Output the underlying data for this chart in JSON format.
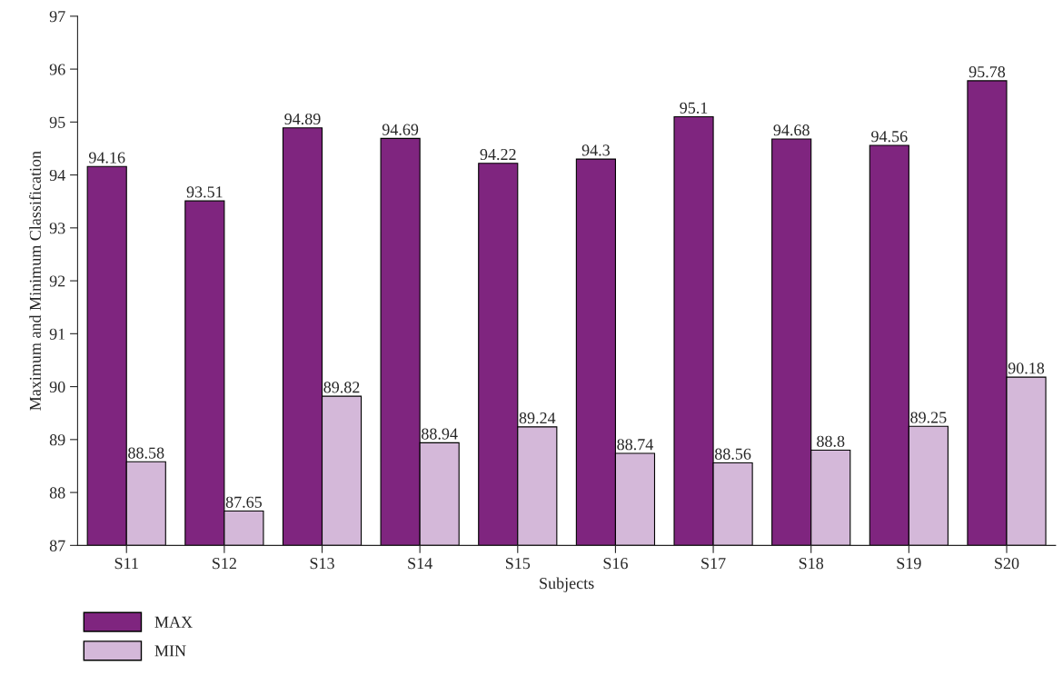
{
  "chart_data": {
    "type": "bar",
    "xlabel": "Subjects",
    "ylabel": "Maximum and Minimum Classification",
    "categories": [
      "S11",
      "S12",
      "S13",
      "S14",
      "S15",
      "S16",
      "S17",
      "S18",
      "S19",
      "S20"
    ],
    "series": [
      {
        "name": "MAX",
        "color": "#7f257f",
        "values": [
          94.16,
          93.51,
          94.89,
          94.69,
          94.22,
          94.3,
          95.1,
          94.68,
          94.56,
          95.78
        ]
      },
      {
        "name": "MIN",
        "color": "#d4b8d9",
        "values": [
          88.58,
          87.65,
          89.82,
          88.94,
          89.24,
          88.74,
          88.56,
          88.8,
          89.25,
          90.18
        ]
      }
    ],
    "ylim": [
      87,
      97
    ],
    "yticks": [
      87,
      88,
      89,
      90,
      91,
      92,
      93,
      94,
      95,
      96,
      97
    ],
    "data_labels": true,
    "grid": false,
    "legend": "bottom left"
  }
}
